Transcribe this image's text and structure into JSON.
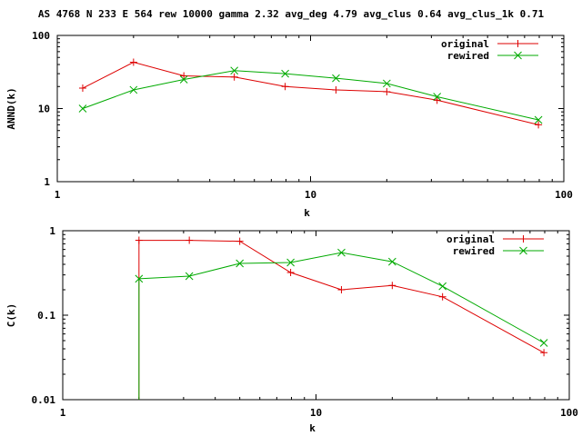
{
  "title": "AS 4768 N 233 E 564 rew 10000 gamma 2.32 avg_deg 4.79 avg_clus 0.64 avg_clus_1k 0.71",
  "colors": {
    "original": "#dd0000",
    "rewired": "#00aa00",
    "axis": "#000000",
    "background": "#ffffff"
  },
  "chart_data": [
    {
      "type": "line",
      "title": "",
      "xlabel": "k",
      "ylabel": "ANND(k)",
      "xscale": "log",
      "yscale": "log",
      "xlim": [
        1,
        100
      ],
      "ylim": [
        1,
        100
      ],
      "xticks": [
        {
          "value": 1,
          "label": "1"
        },
        {
          "value": 10,
          "label": "10"
        },
        {
          "value": 100,
          "label": "100"
        }
      ],
      "yticks": [
        {
          "value": 1,
          "label": "1"
        },
        {
          "value": 10,
          "label": "10"
        },
        {
          "value": 100,
          "label": "100"
        }
      ],
      "grid": false,
      "legend": "top-right",
      "series": [
        {
          "name": "original",
          "marker": "plus",
          "x": [
            1.26,
            2.0,
            3.16,
            5.0,
            7.94,
            12.6,
            20.0,
            31.6,
            79.4
          ],
          "y": [
            19,
            43,
            28,
            27,
            20,
            18,
            17,
            13,
            6
          ]
        },
        {
          "name": "rewired",
          "marker": "cross",
          "x": [
            1.26,
            2.0,
            3.16,
            5.0,
            7.94,
            12.6,
            20.0,
            31.6,
            79.4
          ],
          "y": [
            10,
            18,
            25,
            33,
            30,
            26,
            22,
            14.5,
            7
          ]
        }
      ]
    },
    {
      "type": "line",
      "title": "",
      "xlabel": "k",
      "ylabel": "C(k)",
      "xscale": "log",
      "yscale": "log",
      "xlim": [
        1,
        100
      ],
      "ylim": [
        0.01,
        1
      ],
      "xticks": [
        {
          "value": 1,
          "label": "1"
        },
        {
          "value": 10,
          "label": "10"
        },
        {
          "value": 100,
          "label": "100"
        }
      ],
      "yticks": [
        {
          "value": 0.01,
          "label": "0.01"
        },
        {
          "value": 0.1,
          "label": "0.1"
        },
        {
          "value": 1,
          "label": "1"
        }
      ],
      "grid": false,
      "legend": "top-right",
      "series": [
        {
          "name": "original",
          "marker": "plus",
          "x": [
            2.0,
            3.16,
            5.0,
            7.94,
            12.6,
            20.0,
            31.6,
            79.4
          ],
          "y": [
            0.77,
            0.77,
            0.75,
            0.32,
            0.2,
            0.225,
            0.165,
            0.036
          ]
        },
        {
          "name": "rewired",
          "marker": "cross",
          "x": [
            2.0,
            3.16,
            5.0,
            7.94,
            12.6,
            20.0,
            31.6,
            79.4
          ],
          "y": [
            0.27,
            0.29,
            0.41,
            0.42,
            0.55,
            0.43,
            0.22,
            0.047
          ]
        }
      ]
    }
  ]
}
